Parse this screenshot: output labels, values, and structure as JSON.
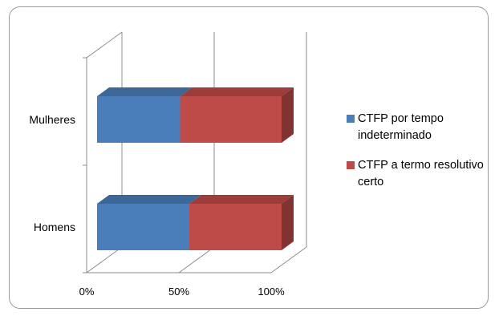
{
  "chart_data": {
    "type": "bar",
    "orientation": "horizontal",
    "stacked": "percent",
    "three_d": true,
    "categories": [
      "Mulheres",
      "Homens"
    ],
    "series": [
      {
        "name": "CTFP por tempo indeterminado",
        "color": "#4a7ebb",
        "values": [
          45,
          50
        ]
      },
      {
        "name": "CTFP a termo resolutivo certo",
        "color": "#be4b48",
        "values": [
          55,
          50
        ]
      }
    ],
    "x_ticks": [
      "0%",
      "50%",
      "100%"
    ],
    "xlim": [
      0,
      100
    ],
    "grid": true,
    "legend_position": "right"
  }
}
